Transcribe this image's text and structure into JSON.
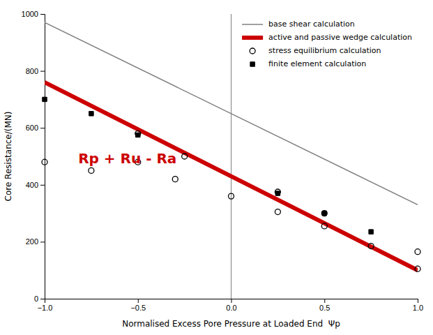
{
  "chart_data": {
    "type": "line",
    "xlabel": "Normalised Excess Pore Pressure at Loaded End  Ψp",
    "ylabel": "Core Resistance/(MN)",
    "xlim": [
      -1.0,
      1.0
    ],
    "ylim": [
      0,
      1000
    ],
    "xticks": [
      {
        "value": -1.0,
        "label": "−1.0"
      },
      {
        "value": -0.5,
        "label": "−0.5"
      },
      {
        "value": 0.0,
        "label": "0.0"
      },
      {
        "value": 0.5,
        "label": "0.5"
      },
      {
        "value": 1.0,
        "label": "1.0"
      }
    ],
    "yticks": [
      0,
      200,
      400,
      600,
      800,
      1000
    ],
    "grid": false,
    "legend": "upper right",
    "series": [
      {
        "name": "base shear calculation",
        "type": "line",
        "color": "#808080",
        "x": [
          -1.0,
          1.0
        ],
        "values": [
          970,
          330
        ]
      },
      {
        "name": "active and passive wedge calculation",
        "type": "line",
        "color": "#cc0000",
        "x": [
          -1.0,
          1.0
        ],
        "values": [
          760,
          100
        ]
      },
      {
        "name": "stress equilibrium calculation",
        "type": "scatter",
        "color": "black",
        "marker": "circle-open",
        "x": [
          -1.0,
          -0.75,
          -0.5,
          -0.5,
          -0.3,
          -0.25,
          0.0,
          0.25,
          0.25,
          0.5,
          0.5,
          0.75,
          1.0,
          1.0
        ],
        "values": [
          480,
          450,
          480,
          580,
          420,
          500,
          360,
          375,
          305,
          255,
          300,
          185,
          165,
          105
        ]
      },
      {
        "name": "finite element calculation",
        "type": "scatter",
        "color": "black",
        "marker": "square",
        "x": [
          -1.0,
          -0.75,
          -0.5,
          0.25,
          0.5,
          0.75
        ],
        "values": [
          700,
          650,
          575,
          370,
          300,
          235
        ]
      }
    ],
    "vertical_line": {
      "x": 0.0,
      "color": "#808080"
    },
    "annotations": [
      {
        "text": "Rp + Ru - Ra",
        "x": -0.82,
        "y": 490,
        "color": "#cc0000"
      }
    ]
  }
}
